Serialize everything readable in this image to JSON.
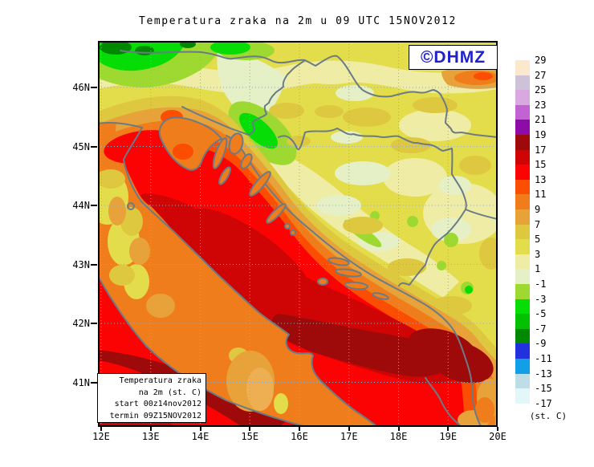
{
  "title": "Temperatura zraka na 2m u 09 UTC 15NOV2012",
  "watermark": {
    "text": "©DHMZ",
    "color": "#2121cc"
  },
  "legend_box": {
    "lines": [
      "Temperatura zraka",
      "na 2m (st. C)",
      "start 00z14nov2012",
      "termin 09Z15NOV2012"
    ]
  },
  "map": {
    "x_axis": {
      "labels": [
        "12E",
        "13E",
        "14E",
        "15E",
        "16E",
        "17E",
        "18E",
        "19E",
        "20E"
      ]
    },
    "y_axis": {
      "labels": [
        "46N",
        "45N",
        "44N",
        "43N",
        "42N",
        "41N"
      ]
    }
  },
  "colorbar": {
    "unit_label": "(st. C)",
    "tick_labels": [
      "29",
      "27",
      "25",
      "23",
      "21",
      "19",
      "17",
      "15",
      "13",
      "11",
      "9",
      "7",
      "5",
      "3",
      "1",
      "-1",
      "-3",
      "-5",
      "-7",
      "-9",
      "-11",
      "-13",
      "-15",
      "-17"
    ],
    "colors": [
      "#fce8cd",
      "#cec2d9",
      "#daa8e0",
      "#c363d3",
      "#8d0ba6",
      "#9e0a0a",
      "#cf0404",
      "#fb0303",
      "#fc4e02",
      "#f07d1b",
      "#e8a23a",
      "#ddc83f",
      "#e4dd4b",
      "#efeda5",
      "#e5f0c6",
      "#9ed931",
      "#06dc06",
      "#01c101",
      "#018801",
      "#2330dd",
      "#119fe8",
      "#bfdde7",
      "#e4f7f8"
    ]
  },
  "chart_data": {
    "type": "heatmap",
    "title": "Temperatura zraka na 2m u 09 UTC 15NOV2012",
    "variable": "air temperature at 2 m",
    "units": "st. C",
    "valid_time": "09 UTC 15NOV2012",
    "init_time": "start 00z 14nov2012",
    "lon_range_deg_e": [
      12,
      20
    ],
    "lat_range_deg_n": [
      41,
      46.8
    ],
    "contour_interval_deg_c": 2,
    "scale_values": [
      29,
      27,
      25,
      23,
      21,
      19,
      17,
      15,
      13,
      11,
      9,
      7,
      5,
      3,
      1,
      -1,
      -3,
      -5,
      -7,
      -9,
      -11,
      -13,
      -15,
      -17
    ],
    "observed_regions": [
      {
        "area": "NW corner / Alps",
        "approx_temp_c": "-7 to -1"
      },
      {
        "area": "northern Croatia and Slavonia plains",
        "approx_temp_c": "3 to 7"
      },
      {
        "area": "Gorski Kotar mountains",
        "approx_temp_c": "-5 to 1"
      },
      {
        "area": "Adriatic Sea",
        "approx_temp_c": "13 to 17"
      },
      {
        "area": "southern Adriatic core",
        "approx_temp_c": "17 to 19"
      },
      {
        "area": "Bosnia highlands",
        "approx_temp_c": "1 to 7"
      },
      {
        "area": "SE inland lowlands",
        "approx_temp_c": "9 to 15"
      },
      {
        "area": "Apennine ridge (Italy)",
        "approx_temp_c": "5 to 11"
      }
    ]
  }
}
